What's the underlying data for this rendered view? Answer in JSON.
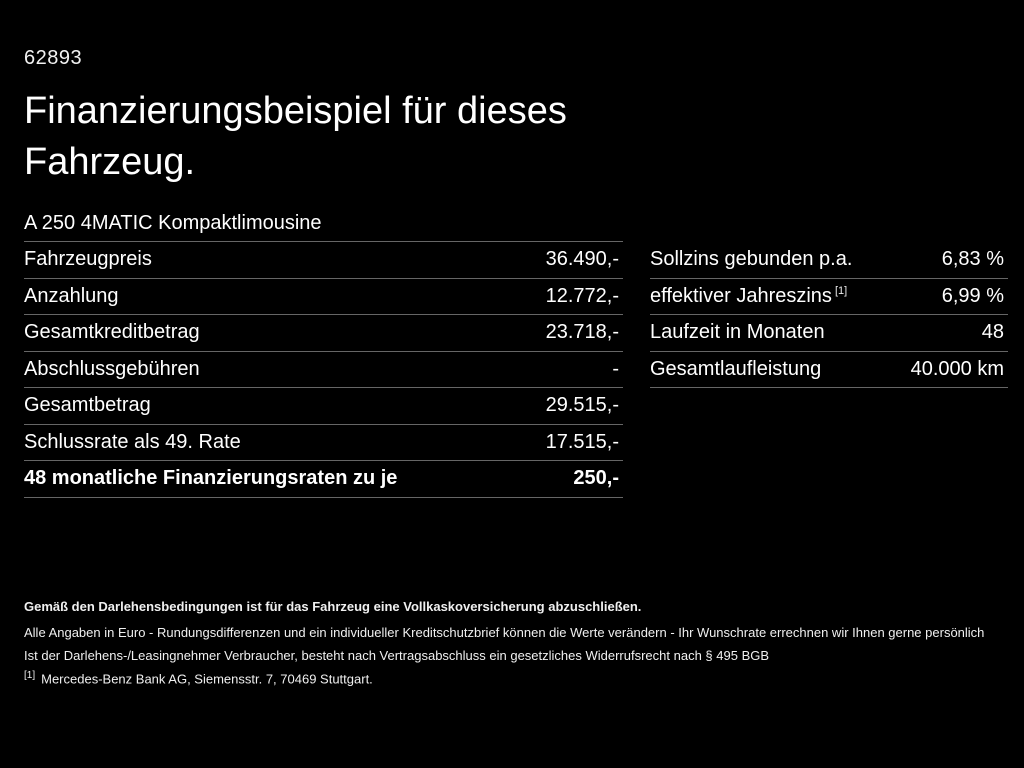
{
  "page": {
    "background_color": "#000000",
    "text_color": "#ffffff",
    "divider_color": "#666666"
  },
  "header": {
    "ref_number": "62893",
    "title": "Finanzierungsbeispiel für dieses Fahrzeug.",
    "vehicle_model": "A 250 4MATIC Kompaktlimousine"
  },
  "finance_table": {
    "rows": [
      {
        "label": "Fahrzeugpreis",
        "value": "36.490,-"
      },
      {
        "label": "Anzahlung",
        "value": "12.772,-"
      },
      {
        "label": "Gesamtkreditbetrag",
        "value": "23.718,-"
      },
      {
        "label": "Abschlussgebühren",
        "value": "-"
      },
      {
        "label": "Gesamtbetrag",
        "value": "29.515,-"
      },
      {
        "label": "Schlussrate als 49. Rate",
        "value": "17.515,-"
      },
      {
        "label": "48 monatliche Finanzierungsraten zu je",
        "value": "250,-"
      }
    ]
  },
  "conditions_table": {
    "rows": [
      {
        "label": "Sollzins gebunden p.a.",
        "value": "6,83 %"
      },
      {
        "label": "effektiver Jahreszins",
        "footnote_marker": "[1]",
        "value": "6,99 %"
      },
      {
        "label": "Laufzeit in Monaten",
        "value": "48"
      },
      {
        "label": "Gesamtlaufleistung",
        "value": "40.000 km"
      }
    ]
  },
  "footer": {
    "insurance_note": "Gemäß den Darlehensbedingungen ist für das Fahrzeug eine Vollkaskoversicherung abzuschließen.",
    "disclaimer_rounding": "Alle Angaben in Euro - Rundungsdifferenzen und ein individueller Kreditschutzbrief können die Werte verändern - Ihr Wunschrate errechnen wir Ihnen gerne persönlich",
    "disclaimer_withdrawal": "Ist der Darlehens-/Leasingnehmer Verbraucher, besteht nach Vertragsabschluss ein gesetzliches Widerrufsrecht nach § 495 BGB",
    "footnote_marker": "[1]",
    "footnote_text": "Mercedes-Benz Bank AG, Siemensstr. 7, 70469 Stuttgart."
  }
}
